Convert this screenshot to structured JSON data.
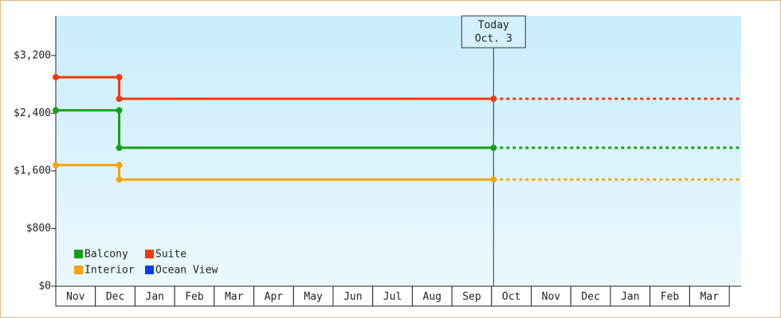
{
  "chart_data": {
    "type": "step-line",
    "categories": [
      "Nov",
      "Dec",
      "Jan",
      "Feb",
      "Mar",
      "Apr",
      "May",
      "Jun",
      "Jul",
      "Aug",
      "Sep",
      "Oct",
      "Nov",
      "Dec",
      "Jan",
      "Feb",
      "Mar"
    ],
    "xlim": [
      0,
      17.3
    ],
    "ylim": [
      0,
      3750
    ],
    "yticks": [
      {
        "value": 0,
        "label": "$0"
      },
      {
        "value": 800,
        "label": "$800"
      },
      {
        "value": 1600,
        "label": "$1,600"
      },
      {
        "value": 2400,
        "label": "$2,400"
      },
      {
        "value": 3200,
        "label": "$3,200"
      }
    ],
    "series": [
      {
        "name": "Balcony",
        "color": "#17a017",
        "x": [
          0,
          1.6,
          1.6,
          11.05
        ],
        "values": [
          2440,
          2440,
          1920,
          1920
        ]
      },
      {
        "name": "Suite",
        "color": "#f03c0c",
        "x": [
          0,
          1.6,
          1.6,
          11.05
        ],
        "values": [
          2900,
          2900,
          2600,
          2600
        ]
      },
      {
        "name": "Interior",
        "color": "#f7a40c",
        "x": [
          0,
          1.6,
          1.6,
          11.05
        ],
        "values": [
          1680,
          1680,
          1480,
          1480
        ]
      },
      {
        "name": "Ocean View",
        "color": "#0c3cf0",
        "x": [],
        "values": []
      }
    ],
    "annotation": {
      "lines": [
        "Today",
        "Oct. 3"
      ],
      "x": 11.05
    },
    "legend": "lower-left"
  }
}
